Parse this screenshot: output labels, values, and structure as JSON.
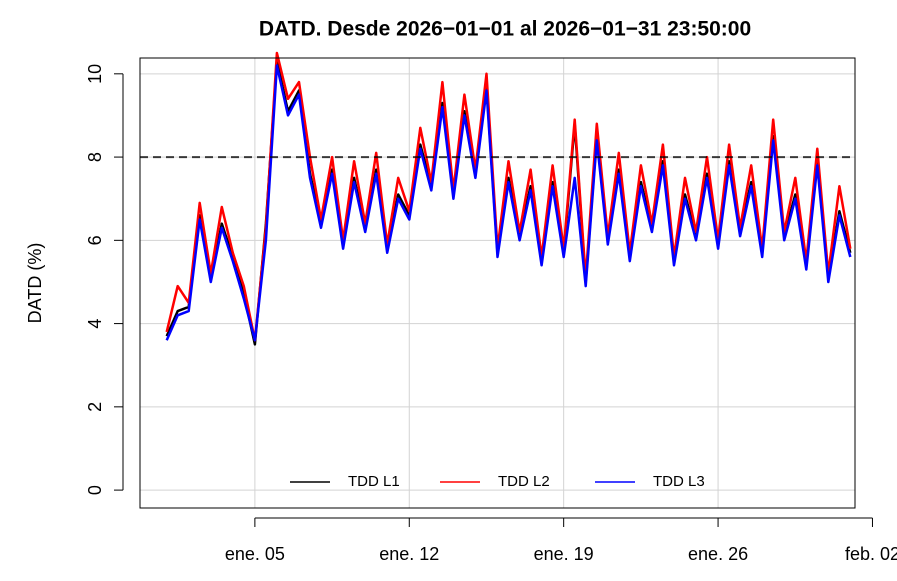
{
  "chart_data": {
    "type": "line",
    "title": "DATD. Desde  2026−01−01  al  2026−01−31 23:50:00",
    "ylabel": "DATD (%)",
    "x": [
      "2026-01-01 00:00",
      "2026-01-01 12:00",
      "2026-01-02 00:00",
      "2026-01-02 12:00",
      "2026-01-03 00:00",
      "2026-01-03 12:00",
      "2026-01-04 00:00",
      "2026-01-04 12:00",
      "2026-01-05 00:00",
      "2026-01-05 12:00",
      "2026-01-06 00:00",
      "2026-01-06 12:00",
      "2026-01-07 00:00",
      "2026-01-07 12:00",
      "2026-01-08 00:00",
      "2026-01-08 12:00",
      "2026-01-09 00:00",
      "2026-01-09 12:00",
      "2026-01-10 00:00",
      "2026-01-10 12:00",
      "2026-01-11 00:00",
      "2026-01-11 12:00",
      "2026-01-12 00:00",
      "2026-01-12 12:00",
      "2026-01-13 00:00",
      "2026-01-13 12:00",
      "2026-01-14 00:00",
      "2026-01-14 12:00",
      "2026-01-15 00:00",
      "2026-01-15 12:00",
      "2026-01-16 00:00",
      "2026-01-16 12:00",
      "2026-01-17 00:00",
      "2026-01-17 12:00",
      "2026-01-18 00:00",
      "2026-01-18 12:00",
      "2026-01-19 00:00",
      "2026-01-19 12:00",
      "2026-01-20 00:00",
      "2026-01-20 12:00",
      "2026-01-21 00:00",
      "2026-01-21 12:00",
      "2026-01-22 00:00",
      "2026-01-22 12:00",
      "2026-01-23 00:00",
      "2026-01-23 12:00",
      "2026-01-24 00:00",
      "2026-01-24 12:00",
      "2026-01-25 00:00",
      "2026-01-25 12:00",
      "2026-01-26 00:00",
      "2026-01-26 12:00",
      "2026-01-27 00:00",
      "2026-01-27 12:00",
      "2026-01-28 00:00",
      "2026-01-28 12:00",
      "2026-01-29 00:00",
      "2026-01-29 12:00",
      "2026-01-30 00:00",
      "2026-01-30 12:00",
      "2026-01-31 00:00",
      "2026-01-31 12:00",
      "2026-01-31 23:50"
    ],
    "series": [
      {
        "name": "TDD L1",
        "color": "#000000",
        "values": [
          3.7,
          4.3,
          4.4,
          6.6,
          5.1,
          6.4,
          5.6,
          4.7,
          3.5,
          6.4,
          10.3,
          9.1,
          9.6,
          7.6,
          6.4,
          7.7,
          5.9,
          7.5,
          6.3,
          7.7,
          5.8,
          7.1,
          6.6,
          8.3,
          7.3,
          9.3,
          7.1,
          9.1,
          7.6,
          9.7,
          5.7,
          7.5,
          6.1,
          7.3,
          5.5,
          7.4,
          5.7,
          8.8,
          5.0,
          8.5,
          6.0,
          7.7,
          5.6,
          7.4,
          6.3,
          7.9,
          5.5,
          7.1,
          6.1,
          7.6,
          5.9,
          7.9,
          6.2,
          7.4,
          5.7,
          8.5,
          6.1,
          7.1,
          5.4,
          7.9,
          5.1,
          6.7,
          5.7
        ]
      },
      {
        "name": "TDD L2",
        "color": "#ff0000",
        "values": [
          3.8,
          4.9,
          4.5,
          6.9,
          5.2,
          6.8,
          5.7,
          4.9,
          3.6,
          6.3,
          10.5,
          9.4,
          9.8,
          8.0,
          6.5,
          8.0,
          6.0,
          7.9,
          6.4,
          8.1,
          5.9,
          7.5,
          6.7,
          8.7,
          7.4,
          9.8,
          7.2,
          9.5,
          7.7,
          10.0,
          5.8,
          7.9,
          6.2,
          7.7,
          5.6,
          7.8,
          5.8,
          8.9,
          5.1,
          8.8,
          6.1,
          8.1,
          5.7,
          7.8,
          6.4,
          8.3,
          5.6,
          7.5,
          6.2,
          8.0,
          6.0,
          8.3,
          6.3,
          7.8,
          5.8,
          8.9,
          6.2,
          7.5,
          5.5,
          8.2,
          5.2,
          7.3,
          5.8
        ]
      },
      {
        "name": "TDD L3",
        "color": "#0000ff",
        "values": [
          3.6,
          4.2,
          4.3,
          6.5,
          5.0,
          6.3,
          5.5,
          4.6,
          3.6,
          6.0,
          10.2,
          9.0,
          9.5,
          7.5,
          6.3,
          7.6,
          5.8,
          7.4,
          6.2,
          7.6,
          5.7,
          7.0,
          6.5,
          8.2,
          7.2,
          9.2,
          7.0,
          9.0,
          7.5,
          9.6,
          5.6,
          7.4,
          6.0,
          7.2,
          5.4,
          7.3,
          5.6,
          7.5,
          4.9,
          8.4,
          5.9,
          7.6,
          5.5,
          7.3,
          6.2,
          7.8,
          5.4,
          7.0,
          6.0,
          7.5,
          5.8,
          7.8,
          6.1,
          7.3,
          5.6,
          8.4,
          6.0,
          7.0,
          5.3,
          7.8,
          5.0,
          6.6,
          5.6
        ]
      }
    ],
    "xlim": [
      "2025-12-30 19:00",
      "2026-02-01 05:00"
    ],
    "xticks": [
      {
        "value": "2026-01-05",
        "label": "ene. 05"
      },
      {
        "value": "2026-01-12",
        "label": "ene. 12"
      },
      {
        "value": "2026-01-19",
        "label": "ene. 19"
      },
      {
        "value": "2026-01-26",
        "label": "ene. 26"
      },
      {
        "value": "2026-02-02",
        "label": "feb. 02"
      }
    ],
    "ylim": [
      -0.43,
      10.38
    ],
    "yticks": [
      0,
      2,
      4,
      6,
      8,
      10
    ],
    "hline": 8,
    "grid": true,
    "legend": "bottom"
  }
}
